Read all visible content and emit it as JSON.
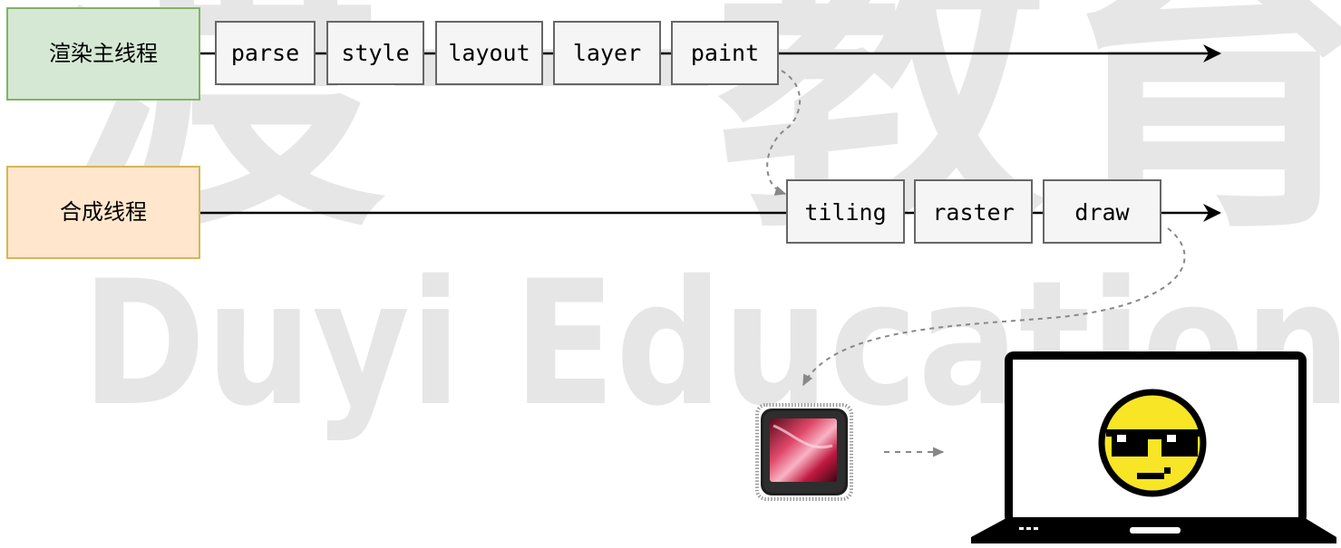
{
  "watermark": {
    "chars": "渡一教育",
    "text": "Duyi Education"
  },
  "threads": {
    "main": {
      "label": "渲染主线程",
      "fill": "#d5e8d4",
      "stroke": "#82b366",
      "steps": [
        "parse",
        "style",
        "layout",
        "layer",
        "paint"
      ]
    },
    "compositor": {
      "label": "合成线程",
      "fill": "#ffe6cc",
      "stroke": "#d6b656",
      "steps": [
        "tiling",
        "raster",
        "draw"
      ]
    }
  },
  "step_style": {
    "fill": "#f5f5f5",
    "stroke": "#666666"
  },
  "icons": {
    "gpu": "gpu-chip-icon",
    "display": "laptop-display-icon",
    "screen_content": "pixel-sunglasses-smiley-icon"
  },
  "colors": {
    "line": "#000000",
    "dashed": "#888888",
    "watermark": "#e6e6e6",
    "smiley": "#f7e526"
  }
}
